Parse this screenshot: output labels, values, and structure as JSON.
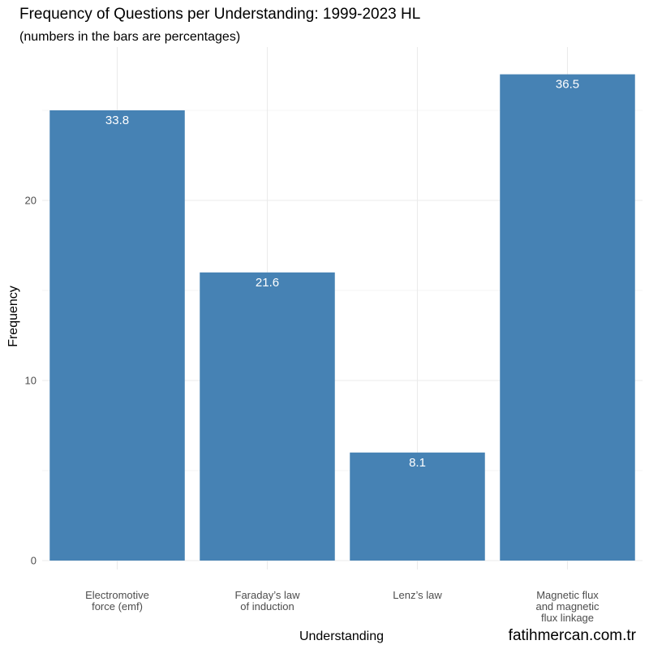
{
  "chart_data": {
    "type": "bar",
    "title": "Frequency of Questions per Understanding: 1999-2023 HL",
    "subtitle": "(numbers in the bars are percentages)",
    "xlabel": "Understanding",
    "ylabel": "Frequency",
    "categories": [
      [
        "Electromotive",
        "force (emf)"
      ],
      [
        "Faraday’s law",
        "of induction"
      ],
      [
        "Lenz’s law"
      ],
      [
        "Magnetic flux",
        "and magnetic",
        "flux linkage"
      ]
    ],
    "values": [
      25,
      16,
      6,
      27
    ],
    "bar_labels": [
      "33.8",
      "21.6",
      "8.1",
      "36.5"
    ],
    "y_ticks": [
      0,
      10,
      20
    ],
    "ylim": [
      0,
      28.5
    ],
    "grid": true,
    "bar_color": "#4682B4"
  },
  "caption": "fatihmercan.com.tr"
}
